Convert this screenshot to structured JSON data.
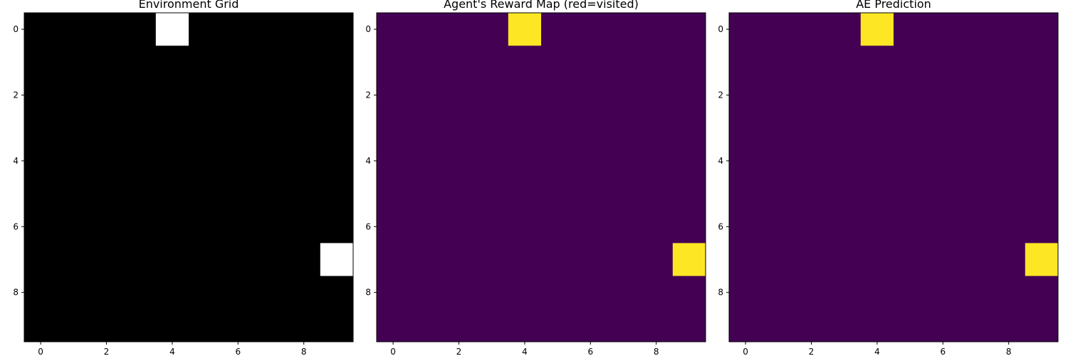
{
  "chart_data": [
    {
      "type": "heatmap",
      "title": "Environment Grid",
      "colormap": "gray",
      "colors": {
        "low": "#000000",
        "high": "#ffffff"
      },
      "rows": 10,
      "cols": 10,
      "high_cells": [
        {
          "row": 0,
          "col": 4
        },
        {
          "row": 7,
          "col": 9
        }
      ],
      "xticks": [
        0,
        2,
        4,
        6,
        8
      ],
      "yticks": [
        0,
        2,
        4,
        6,
        8
      ],
      "xlim": [
        -0.5,
        9.5
      ],
      "ylim": [
        9.5,
        -0.5
      ],
      "grid": false
    },
    {
      "type": "heatmap",
      "title": "Agent's Reward Map (red=visited)",
      "colormap": "viridis",
      "colors": {
        "low": "#440154",
        "high": "#fde725"
      },
      "rows": 10,
      "cols": 10,
      "high_cells": [
        {
          "row": 0,
          "col": 4
        },
        {
          "row": 7,
          "col": 9
        }
      ],
      "xticks": [
        0,
        2,
        4,
        6,
        8
      ],
      "yticks": [
        0,
        2,
        4,
        6,
        8
      ],
      "xlim": [
        -0.5,
        9.5
      ],
      "ylim": [
        9.5,
        -0.5
      ],
      "grid": false
    },
    {
      "type": "heatmap",
      "title": "AE Prediction",
      "colormap": "viridis",
      "colors": {
        "low": "#440154",
        "high": "#fde725"
      },
      "rows": 10,
      "cols": 10,
      "high_cells": [
        {
          "row": 0,
          "col": 4
        },
        {
          "row": 7,
          "col": 9
        }
      ],
      "xticks": [
        0,
        2,
        4,
        6,
        8
      ],
      "yticks": [
        0,
        2,
        4,
        6,
        8
      ],
      "xlim": [
        -0.5,
        9.5
      ],
      "ylim": [
        9.5,
        -0.5
      ],
      "grid": false
    }
  ]
}
